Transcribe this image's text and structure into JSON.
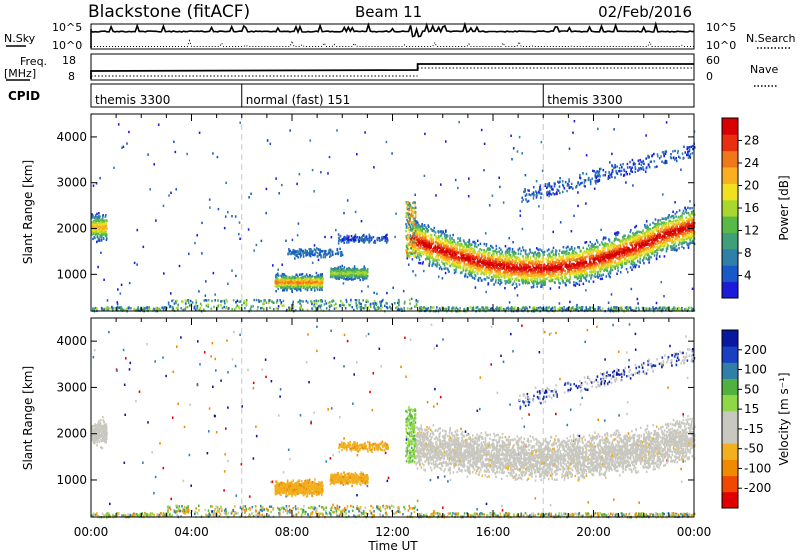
{
  "header": {
    "station": "Blackstone (fitACF)",
    "beam": "Beam 11",
    "date": "02/Feb/2016"
  },
  "summary_panels": {
    "nsky_label": "N.Sky",
    "nsky_ticks": [
      "10^5",
      "10^0"
    ],
    "nsearch_label": "N.Search",
    "freq_label_1": "Freq.",
    "freq_label_2": "[MHz]",
    "freq_ticks": [
      "18",
      "8"
    ],
    "nave_label": "Nave",
    "nave_ticks": [
      "60",
      "0"
    ],
    "cpid_label": "CPID",
    "modes": [
      {
        "name": "themis 3300",
        "start_hour": 0
      },
      {
        "name": "normal (fast) 151",
        "start_hour": 6
      },
      {
        "name": "themis 3300",
        "start_hour": 18
      }
    ]
  },
  "colors": {
    "power_scale": [
      "#1c1cd8",
      "#1858c8",
      "#2f7fa8",
      "#3f9f7a",
      "#58b848",
      "#a8d830",
      "#f0e020",
      "#f8b020",
      "#f07818",
      "#e83010",
      "#d80000"
    ],
    "velocity_scale": [
      "#e00000",
      "#f04800",
      "#f08a00",
      "#f0b020",
      "#c8c8c0",
      "#c8c8c0",
      "#8ed848",
      "#50b040",
      "#2f7fa8",
      "#1840c0",
      "#0818a0"
    ],
    "dashed_guides": "#c8c8c8"
  },
  "chart_data": [
    {
      "type": "heatmap",
      "panel": "power",
      "ylabel": "Slant Range [km]",
      "yticks": [
        "1000",
        "2000",
        "3000",
        "4000"
      ],
      "ylim": [
        200,
        4500
      ],
      "xlim": [
        0,
        24
      ],
      "colorbar_label": "Power [dB]",
      "colorbar_ticks": [
        "4",
        "8",
        "12",
        "16",
        "20",
        "24",
        "28"
      ],
      "colorbar_range": [
        0,
        32
      ],
      "features": [
        {
          "name": "near-range scatter",
          "t_start": 0,
          "t_end": 24,
          "range_km": 250,
          "power_db": 12
        },
        {
          "name": "early patch",
          "t_start": 0.0,
          "t_end": 0.6,
          "range_km": 2050,
          "power_db": 18
        },
        {
          "name": "morning band",
          "t_start": 7.3,
          "t_end": 9.2,
          "range_km": 850,
          "power_db": 22
        },
        {
          "name": "mid band",
          "t_start": 9.5,
          "t_end": 11.0,
          "range_km": 1050,
          "power_db": 14
        },
        {
          "name": "afternoon-evening band",
          "t_start": 12.7,
          "t_end": 24.0,
          "range_km_start": 1800,
          "range_km_min": 1150,
          "range_km_end": 1900,
          "power_db": 28
        }
      ]
    },
    {
      "type": "heatmap",
      "panel": "velocity",
      "ylabel": "Slant Range [km]",
      "yticks": [
        "1000",
        "2000",
        "3000",
        "4000"
      ],
      "ylim": [
        200,
        4500
      ],
      "xlim": [
        0,
        24
      ],
      "xticks": [
        "00:00",
        "04:00",
        "08:00",
        "12:00",
        "16:00",
        "20:00",
        "00:00"
      ],
      "xlabel": "Time UT",
      "colorbar_label": "Velocity [m s⁻¹]",
      "colorbar_ticks": [
        "-200",
        "-100",
        "-50",
        "-15",
        "15",
        "50",
        "100",
        "200"
      ],
      "colorbar_range": [
        -250,
        250
      ],
      "features": [
        {
          "name": "morning band",
          "t_start": 7.3,
          "t_end": 9.2,
          "range_km": 850,
          "velocity_ms": -60
        },
        {
          "name": "mid band",
          "t_start": 9.5,
          "t_end": 11.0,
          "range_km": 1050,
          "velocity_ms": -60
        },
        {
          "name": "upper streak",
          "t_start": 9.8,
          "t_end": 11.8,
          "range_km": 1750,
          "velocity_ms": -40
        },
        {
          "name": "afternoon-evening band",
          "t_start": 12.9,
          "t_end": 24.0,
          "range_km_start": 1800,
          "range_km_min": 1500,
          "range_km_end": 2000,
          "velocity_ms": 0
        }
      ]
    }
  ]
}
